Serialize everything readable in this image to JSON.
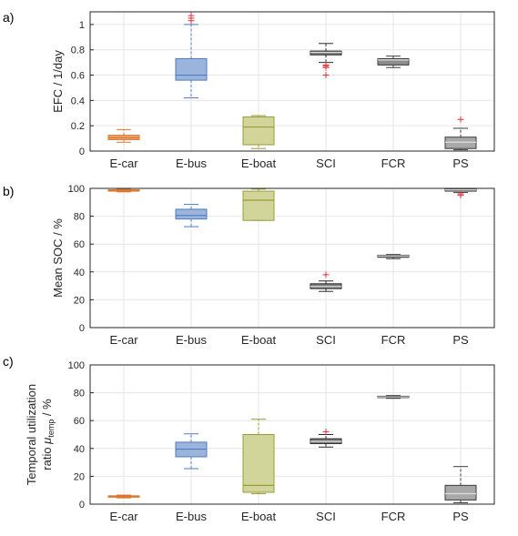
{
  "chart_data": [
    {
      "type": "box",
      "panel_label": "a)",
      "ylabel": "EFC / 1/day",
      "ylim": [
        0,
        1.1
      ],
      "yticks": [
        0,
        0.2,
        0.4,
        0.6,
        0.8,
        1
      ],
      "ytick_labels": [
        "0",
        "0.2",
        "0.4",
        "0.6",
        "0.8",
        "1"
      ],
      "categories": [
        "E-car",
        "E-bus",
        "E-boat",
        "SCI",
        "FCR",
        "PS"
      ],
      "grid": true,
      "boxes": [
        {
          "category": "E-car",
          "color": "#e8a87c",
          "edge": "#d9772f",
          "whisker_low": 0.07,
          "q1": 0.09,
          "median": 0.105,
          "q3": 0.125,
          "whisker_high": 0.17,
          "outliers": []
        },
        {
          "category": "E-bus",
          "color": "#9bb4dc",
          "edge": "#4f7bbf",
          "whisker_low": 0.42,
          "q1": 0.56,
          "median": 0.6,
          "q3": 0.73,
          "whisker_high": 1.0,
          "outliers": [
            1.03,
            1.05,
            1.07
          ]
        },
        {
          "category": "E-boat",
          "color": "#d2d59a",
          "edge": "#9a9c3a",
          "whisker_low": 0.02,
          "q1": 0.05,
          "median": 0.19,
          "q3": 0.27,
          "whisker_high": 0.28,
          "outliers": []
        },
        {
          "category": "SCI",
          "color": "#7a7a7a",
          "edge": "#2a2a2a",
          "whisker_low": 0.7,
          "q1": 0.76,
          "median": 0.78,
          "q3": 0.79,
          "whisker_high": 0.85,
          "outliers": [
            0.6,
            0.66,
            0.67,
            0.68
          ]
        },
        {
          "category": "FCR",
          "color": "#8c8c8c",
          "edge": "#3a3a3a",
          "whisker_low": 0.66,
          "q1": 0.68,
          "median": 0.72,
          "q3": 0.73,
          "whisker_high": 0.75,
          "outliers": []
        },
        {
          "category": "PS",
          "color": "#a8a8a8",
          "edge": "#3a3a3a",
          "whisker_low": 0.01,
          "q1": 0.02,
          "median": 0.07,
          "q3": 0.11,
          "whisker_high": 0.18,
          "outliers": [
            0.25
          ]
        }
      ]
    },
    {
      "type": "box",
      "panel_label": "b)",
      "ylabel": "Mean SOC / %",
      "ylim": [
        0,
        100
      ],
      "yticks": [
        0,
        20,
        40,
        60,
        80,
        100
      ],
      "ytick_labels": [
        "0",
        "20",
        "40",
        "60",
        "80",
        "100"
      ],
      "categories": [
        "E-car",
        "E-bus",
        "E-boat",
        "SCI",
        "FCR",
        "PS"
      ],
      "grid": true,
      "boxes": [
        {
          "category": "E-car",
          "color": "#e8a87c",
          "edge": "#d9772f",
          "whisker_low": 97.5,
          "q1": 98.0,
          "median": 98.5,
          "q3": 99.0,
          "whisker_high": 99.5,
          "outliers": []
        },
        {
          "category": "E-bus",
          "color": "#9bb4dc",
          "edge": "#4f7bbf",
          "whisker_low": 72.5,
          "q1": 78.0,
          "median": 80.5,
          "q3": 85.0,
          "whisker_high": 88.5,
          "outliers": []
        },
        {
          "category": "E-boat",
          "color": "#d2d59a",
          "edge": "#9a9c3a",
          "whisker_low": 77.0,
          "q1": 77.0,
          "median": 91.5,
          "q3": 98.0,
          "whisker_high": 99.5,
          "outliers": []
        },
        {
          "category": "SCI",
          "color": "#7a7a7a",
          "edge": "#2a2a2a",
          "whisker_low": 26.0,
          "q1": 28.0,
          "median": 29.5,
          "q3": 31.5,
          "whisker_high": 33.5,
          "outliers": [
            38.0
          ]
        },
        {
          "category": "FCR",
          "color": "#8c8c8c",
          "edge": "#3a3a3a",
          "whisker_low": 49.5,
          "q1": 50.5,
          "median": 51.5,
          "q3": 52.0,
          "whisker_high": 52.5,
          "outliers": []
        },
        {
          "category": "PS",
          "color": "#a8a8a8",
          "edge": "#3a3a3a",
          "whisker_low": 97.0,
          "q1": 98.0,
          "median": 99.0,
          "q3": 99.5,
          "whisker_high": 100.0,
          "outliers": [
            95.0,
            96.0
          ]
        }
      ]
    },
    {
      "type": "box",
      "panel_label": "c)",
      "ylabel_line1": "Temporal utilization",
      "ylabel_line2_prefix": "ratio ",
      "ylabel_mu": "μ",
      "ylabel_sub": "temp",
      "ylabel_suffix": " / %",
      "ylim": [
        0,
        100
      ],
      "yticks": [
        0,
        20,
        40,
        60,
        80,
        100
      ],
      "ytick_labels": [
        "0",
        "20",
        "40",
        "60",
        "80",
        "100"
      ],
      "categories": [
        "E-car",
        "E-bus",
        "E-boat",
        "SCI",
        "FCR",
        "PS"
      ],
      "grid": true,
      "boxes": [
        {
          "category": "E-car",
          "color": "#e8a87c",
          "edge": "#d9772f",
          "whisker_low": 4.5,
          "q1": 5.0,
          "median": 5.5,
          "q3": 6.0,
          "whisker_high": 6.5,
          "outliers": []
        },
        {
          "category": "E-bus",
          "color": "#9bb4dc",
          "edge": "#4f7bbf",
          "whisker_low": 25.5,
          "q1": 34.0,
          "median": 39.5,
          "q3": 44.5,
          "whisker_high": 50.5,
          "outliers": []
        },
        {
          "category": "E-boat",
          "color": "#d2d59a",
          "edge": "#9a9c3a",
          "whisker_low": 7.5,
          "q1": 8.5,
          "median": 13.5,
          "q3": 50.0,
          "whisker_high": 61.0,
          "outliers": []
        },
        {
          "category": "SCI",
          "color": "#7a7a7a",
          "edge": "#2a2a2a",
          "whisker_low": 41.0,
          "q1": 43.5,
          "median": 45.0,
          "q3": 47.0,
          "whisker_high": 50.0,
          "outliers": [
            52.0
          ]
        },
        {
          "category": "FCR",
          "color": "#8c8c8c",
          "edge": "#3a3a3a",
          "whisker_low": 76.0,
          "q1": 76.5,
          "median": 77.0,
          "q3": 77.5,
          "whisker_high": 78.0,
          "outliers": []
        },
        {
          "category": "PS",
          "color": "#a8a8a8",
          "edge": "#3a3a3a",
          "whisker_low": 1.0,
          "q1": 3.0,
          "median": 7.5,
          "q3": 13.5,
          "whisker_high": 27.0,
          "outliers": []
        }
      ]
    }
  ],
  "colors": {
    "outlier": "#e0303a",
    "axis": "#262626",
    "grid": "#e6e6e6",
    "median_dark": "#e0e0e0"
  }
}
